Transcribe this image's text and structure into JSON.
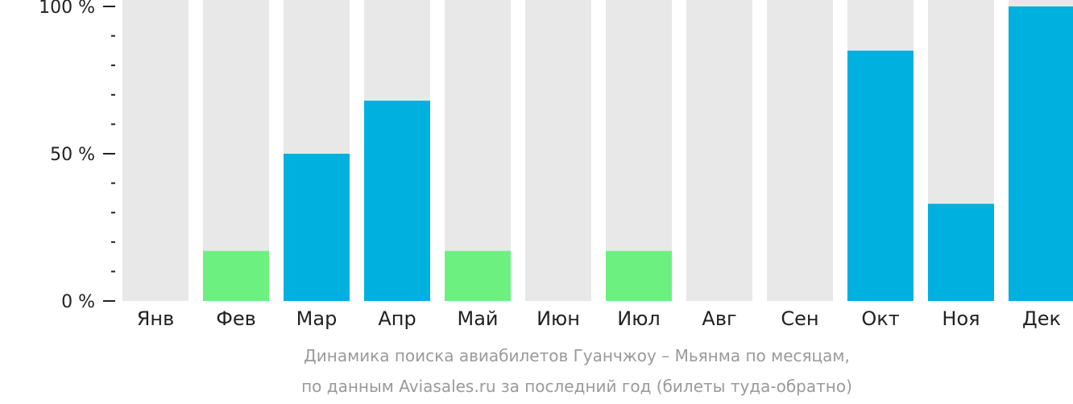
{
  "chart_data": {
    "type": "bar",
    "categories": [
      "Янв",
      "Фев",
      "Мар",
      "Апр",
      "Май",
      "Июн",
      "Июл",
      "Авг",
      "Сен",
      "Окт",
      "Ноя",
      "Дек"
    ],
    "values": [
      0,
      17,
      50,
      68,
      17,
      0,
      17,
      0,
      0,
      85,
      33,
      100
    ],
    "ylim": [
      0,
      100
    ],
    "y_ticks": [
      {
        "value": 0,
        "label": "0 %"
      },
      {
        "value": 50,
        "label": "50 %"
      },
      {
        "value": 100,
        "label": "100 %"
      }
    ],
    "title": "Динамика поиска авиабилетов Гуанчжоу – Мьянма по месяцам,",
    "subtitle": "по данным Aviasales.ru за последний год (билеты туда-обратно)",
    "grid": false,
    "colors": {
      "background_bar": "#e8e8e8",
      "bar_high": "#00b0de",
      "bar_low": "#6cf080",
      "axis": "#222222",
      "caption": "#9a9a9a"
    },
    "low_threshold": 20
  }
}
